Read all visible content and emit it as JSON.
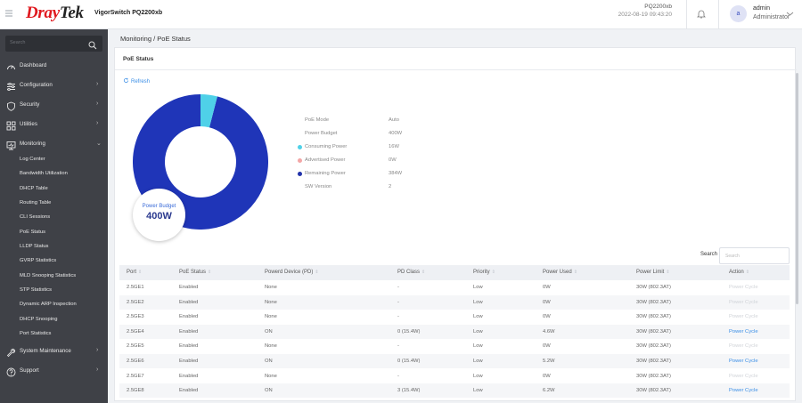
{
  "header": {
    "logo_dray": "Dray",
    "logo_tek": "Tek",
    "device_name": "VigorSwitch PQ2200xb",
    "model": "PQ2200xb",
    "datetime": "2022-08-19 09:43:20",
    "avatar_letter": "a",
    "user_name": "admin",
    "user_role": "Administrator"
  },
  "sidebar": {
    "search_placeholder": "Search",
    "items": [
      {
        "label": "Dashboard",
        "icon": "dashboard-icon"
      },
      {
        "label": "Configuration",
        "icon": "sliders-icon"
      },
      {
        "label": "Security",
        "icon": "shield-icon"
      },
      {
        "label": "Utilities",
        "icon": "grid-icon"
      },
      {
        "label": "Monitoring",
        "icon": "monitor-icon"
      },
      {
        "label": "System Maintenance",
        "icon": "wrench-icon"
      },
      {
        "label": "Support",
        "icon": "help-icon"
      }
    ],
    "monitoring_sub": [
      "Log Center",
      "Bandwidth Utilization",
      "DHCP Table",
      "Routing Table",
      "CLI Sessions",
      "PoE Status",
      "LLDP Status",
      "GVRP Statistics",
      "MLD Snooping Statistics",
      "STP Statistics",
      "Dynamic ARP Inspection",
      "DHCP Snooping",
      "Port Statistics"
    ]
  },
  "breadcrumb": "Monitoring / PoE Status",
  "card": {
    "title": "PoE Status",
    "refresh_label": "Refresh"
  },
  "poe": {
    "budget_title": "Power Budget",
    "budget_value": "400W",
    "info": [
      {
        "key": "PoE Mode",
        "value": "Auto",
        "dot": ""
      },
      {
        "key": "Power Budget",
        "value": "400W",
        "dot": ""
      },
      {
        "key": "Consuming Power",
        "value": "16W",
        "dot": "#4fd1e8"
      },
      {
        "key": "Advertised Power",
        "value": "0W",
        "dot": "#f3a6a6"
      },
      {
        "key": "Remaining Power",
        "value": "384W",
        "dot": "#2233aa"
      },
      {
        "key": "SW Version",
        "value": "2",
        "dot": ""
      }
    ],
    "colors": {
      "consuming": "#4fd1e8",
      "remaining": "#1f35b8"
    }
  },
  "chart_data": {
    "type": "pie",
    "categories": [
      "Consuming Power",
      "Advertised Power",
      "Remaining Power"
    ],
    "values": [
      16,
      0,
      384
    ],
    "title": "",
    "total": 400,
    "unit": "W"
  },
  "table": {
    "search_label": "Search :",
    "search_placeholder": "Search",
    "columns": [
      "Port",
      "PoE Status",
      "Powerd Device (PD)",
      "PD Class",
      "Priority",
      "Power Used",
      "Power Limit",
      "Action"
    ],
    "rows": [
      [
        "2.5GE1",
        "Enabled",
        "None",
        "-",
        "Low",
        "0W",
        "30W (802.3AT)",
        "Power Cycle"
      ],
      [
        "2.5GE2",
        "Enabled",
        "None",
        "-",
        "Low",
        "0W",
        "30W (802.3AT)",
        "Power Cycle"
      ],
      [
        "2.5GE3",
        "Enabled",
        "None",
        "-",
        "Low",
        "0W",
        "30W (802.3AT)",
        "Power Cycle"
      ],
      [
        "2.5GE4",
        "Enabled",
        "ON",
        "0 (15.4W)",
        "Low",
        "4.6W",
        "30W (802.3AT)",
        "Power Cycle"
      ],
      [
        "2.5GE5",
        "Enabled",
        "None",
        "-",
        "Low",
        "0W",
        "30W (802.3AT)",
        "Power Cycle"
      ],
      [
        "2.5GE6",
        "Enabled",
        "ON",
        "0 (15.4W)",
        "Low",
        "5.2W",
        "30W (802.3AT)",
        "Power Cycle"
      ],
      [
        "2.5GE7",
        "Enabled",
        "None",
        "-",
        "Low",
        "0W",
        "30W (802.3AT)",
        "Power Cycle"
      ],
      [
        "2.5GE8",
        "Enabled",
        "ON",
        "3 (15.4W)",
        "Low",
        "6.2W",
        "30W (802.3AT)",
        "Power Cycle"
      ]
    ]
  }
}
